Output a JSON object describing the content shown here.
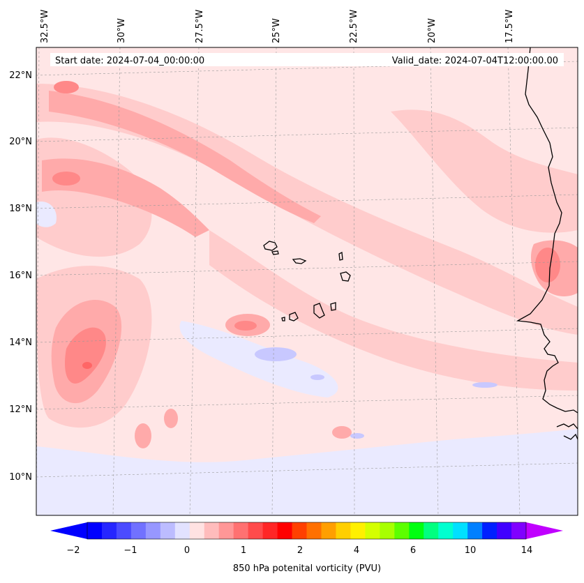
{
  "start_date_text": "Start date: 2024-07-04_00:00:00",
  "valid_date_text": "Valid_date: 2024-07-04T12:00:00.00",
  "lon_labels": [
    "32.5°W",
    "30°W",
    "27.5°W",
    "25°W",
    "22.5°W",
    "20°W",
    "17.5°W"
  ],
  "lat_labels": [
    "22°N",
    "20°N",
    "18°N",
    "16°N",
    "14°N",
    "12°N",
    "10°N"
  ],
  "colorbar": {
    "label": "850 hPa potenital vorticity (PVU)",
    "ticks": [
      "−2",
      "−1",
      "0",
      "1",
      "2",
      "4",
      "6",
      "10",
      "14"
    ],
    "colors": [
      "#0000ff",
      "#2626ff",
      "#4b4bff",
      "#7171ff",
      "#9797ff",
      "#bcbcff",
      "#e2e2ff",
      "#ffe2e2",
      "#ffbcbc",
      "#ff9797",
      "#ff7171",
      "#ff4b4b",
      "#ff2626",
      "#ff0000",
      "#ff4000",
      "#ff7000",
      "#ff9f00",
      "#ffcf00",
      "#fff000",
      "#d4ff00",
      "#a8ff00",
      "#5cff00",
      "#00ff10",
      "#00ff80",
      "#00ffd0",
      "#00e0ff",
      "#0080ff",
      "#0020ff",
      "#4000ff",
      "#8000ff"
    ],
    "extend_min_color": "#0000ff",
    "extend_max_color": "#c000ff"
  },
  "colors": {
    "background_fill": "#ffe6e6",
    "light_pink": "#ffcccc",
    "medium_pink": "#ffaaaa",
    "strong_pink": "#ff8888",
    "red": "#ff6666",
    "light_blue": "#eaeaff",
    "blue": "#c8c8ff",
    "coastline": "#000000"
  }
}
